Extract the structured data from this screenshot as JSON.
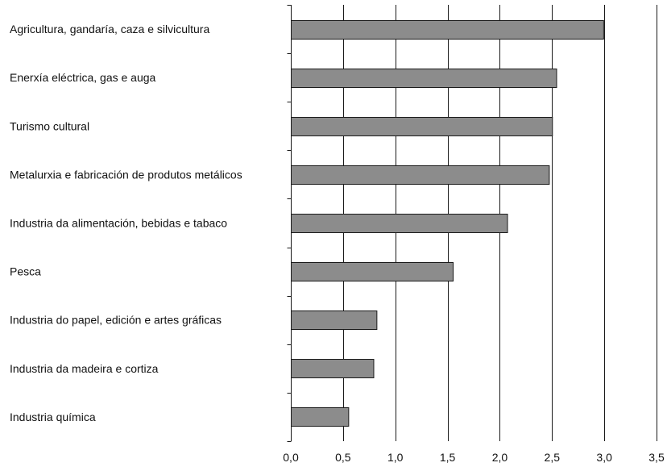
{
  "chart_data": {
    "type": "bar",
    "orientation": "horizontal",
    "categories": [
      "Agricultura, gandaría, caza e silvicultura",
      "Enerxía eléctrica, gas e auga",
      "Turismo cultural",
      "Metalurxia e fabricación de produtos metálicos",
      "Industria da alimentación, bebidas e tabaco",
      "Pesca",
      "Industria do papel, edición e artes gráficas",
      "Industria da madeira e cortiza",
      "Industria química"
    ],
    "values": [
      2.99,
      2.54,
      2.5,
      2.47,
      2.07,
      1.55,
      0.82,
      0.79,
      0.55
    ],
    "xlim": [
      0,
      3.5
    ],
    "xticks": [
      "0,0",
      "0,5",
      "1,0",
      "1,5",
      "2,0",
      "2,5",
      "3,0",
      "3,5"
    ],
    "grid": "vertical",
    "legend": "none",
    "colors": {
      "bar_fill": "#8c8c8c",
      "bar_stroke": "#1a1a1a",
      "grid": "#1a1a1a"
    }
  }
}
